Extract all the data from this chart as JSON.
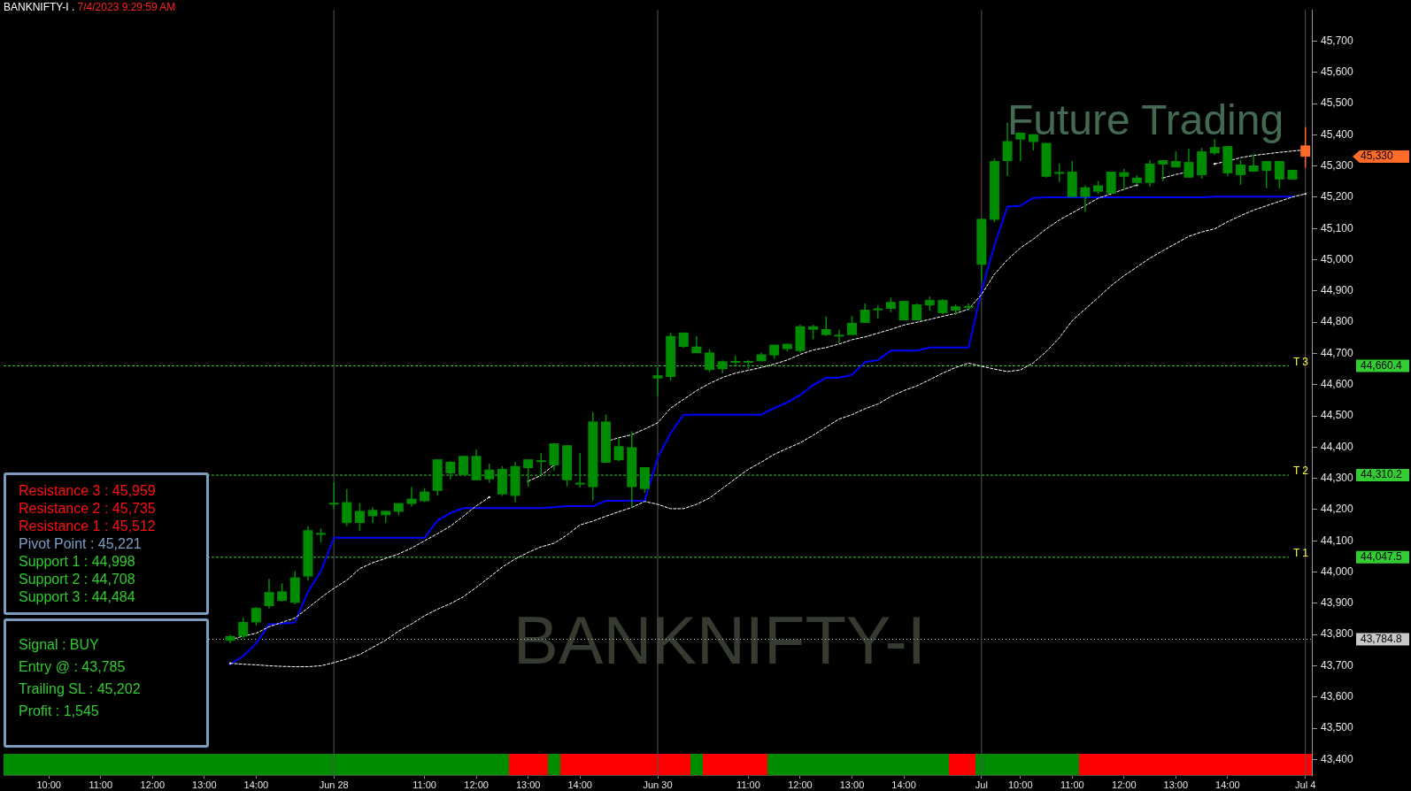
{
  "chart_data": {
    "type": "candlestick",
    "title": "BANKNIFTY-I .",
    "subtitle": "7/4/2023 9:29:59 AM",
    "categories": [
      null,
      null,
      null,
      "10:00",
      null,
      null,
      null,
      "11:00",
      null,
      null,
      null,
      "12:00",
      null,
      null,
      null,
      "13:00",
      null,
      null,
      null,
      "14:00",
      null,
      null,
      null,
      null,
      null,
      "Jun 28",
      null,
      null,
      null,
      null,
      null,
      null,
      "11:00",
      null,
      null,
      null,
      "12:00",
      null,
      null,
      null,
      "13:00",
      null,
      null,
      null,
      "14:00",
      null,
      null,
      null,
      null,
      null,
      "Jun 30",
      null,
      null,
      null,
      null,
      null,
      null,
      "11:00",
      null,
      null,
      null,
      "12:00",
      null,
      null,
      null,
      "13:00",
      null,
      null,
      null,
      "14:00",
      null,
      null,
      null,
      null,
      null,
      "Jul",
      null,
      null,
      "10:00",
      null,
      null,
      null,
      "11:00",
      null,
      null,
      null,
      "12:00",
      null,
      null,
      null,
      "13:00",
      null,
      null,
      null,
      "14:00",
      null,
      null,
      null,
      null,
      null,
      "Jul 4"
    ],
    "ohlc": [
      null,
      null,
      null,
      null,
      null,
      null,
      null,
      null,
      null,
      null,
      null,
      null,
      null,
      null,
      null,
      null,
      null,
      [
        43780,
        43800,
        43772,
        43795
      ],
      [
        43794,
        43854,
        43787,
        43840
      ],
      [
        43839,
        43888,
        43829,
        43885
      ],
      [
        43891,
        43978,
        43883,
        43936
      ],
      [
        43908,
        43964,
        43905,
        43938
      ],
      [
        43902,
        44003,
        43897,
        43983
      ],
      [
        43986,
        44146,
        43972,
        44134
      ],
      [
        44125,
        44140,
        44095,
        44125
      ],
      [
        44222,
        44288,
        44202,
        44222
      ],
      [
        44157,
        44266,
        44148,
        44224
      ],
      [
        44157,
        44221,
        44132,
        44196
      ],
      [
        44179,
        44207,
        44157,
        44199
      ],
      [
        44182,
        44196,
        44157,
        44196
      ],
      [
        44193,
        44221,
        44182,
        44221
      ],
      [
        44218,
        44272,
        44210,
        44235
      ],
      [
        44227,
        44269,
        44224,
        44258
      ],
      [
        44260,
        44361,
        44246,
        44361
      ],
      [
        44316,
        44356,
        44297,
        44353
      ],
      [
        44311,
        44372,
        44311,
        44372
      ],
      [
        44294,
        44392,
        44294,
        44372
      ],
      [
        44297,
        44347,
        44286,
        44328
      ],
      [
        44249,
        44339,
        44244,
        44330
      ],
      [
        44244,
        44353,
        44224,
        44339
      ],
      [
        44333,
        44361,
        44274,
        44361
      ],
      [
        44358,
        44381,
        44305,
        44358
      ],
      [
        44342,
        44412,
        44325,
        44412
      ],
      [
        44294,
        44406,
        44274,
        44406
      ],
      [
        44286,
        44381,
        44271,
        44286
      ],
      [
        44272,
        44512,
        44230,
        44482
      ],
      [
        44350,
        44504,
        44350,
        44482
      ],
      [
        44358,
        44428,
        44356,
        44403
      ],
      [
        44272,
        44451,
        44207,
        44400
      ],
      [
        44266,
        44336,
        44254,
        44336
      ],
      [
        44620,
        44655,
        44564,
        44630
      ],
      [
        44625,
        44767,
        44613,
        44756
      ],
      [
        44721,
        44767,
        44718,
        44767
      ],
      [
        44701,
        44756,
        44701,
        44722
      ],
      [
        44647,
        44714,
        44641,
        44703
      ],
      [
        44650,
        44678,
        44636,
        44675
      ],
      [
        44676,
        44692,
        44664,
        44676
      ],
      [
        44676,
        44678,
        44650,
        44676
      ],
      [
        44675,
        44703,
        44675,
        44697
      ],
      [
        44694,
        44728,
        44683,
        44728
      ],
      [
        44714,
        44731,
        44706,
        44731
      ],
      [
        44708,
        44792,
        44703,
        44787
      ],
      [
        44776,
        44792,
        44745,
        44787
      ],
      [
        44759,
        44818,
        44756,
        44778
      ],
      [
        44760,
        44776,
        44731,
        44760
      ],
      [
        44759,
        44820,
        44759,
        44798
      ],
      [
        44798,
        44860,
        44798,
        44840
      ],
      [
        44844,
        44854,
        44812,
        44844
      ],
      [
        44843,
        44879,
        44832,
        44865
      ],
      [
        44806,
        44868,
        44806,
        44868
      ],
      [
        44806,
        44860,
        44806,
        44857
      ],
      [
        44854,
        44882,
        44837,
        44871
      ],
      [
        44829,
        44874,
        44826,
        44871
      ],
      [
        44837,
        44857,
        44823,
        44851
      ],
      [
        44852,
        44860,
        44837,
        44852
      ],
      [
        44984,
        45131,
        44930,
        45131
      ],
      [
        45128,
        45324,
        45120,
        45316
      ],
      [
        45316,
        45439,
        45268,
        45380
      ],
      [
        45385,
        45407,
        45316,
        45407
      ],
      [
        45377,
        45402,
        45350,
        45402
      ],
      [
        45266,
        45374,
        45263,
        45374
      ],
      [
        45275,
        45308,
        45249,
        45281
      ],
      [
        45201,
        45316,
        45201,
        45282
      ],
      [
        45201,
        45238,
        45154,
        45232
      ],
      [
        45218,
        45252,
        45210,
        45238
      ],
      [
        45212,
        45282,
        45212,
        45282
      ],
      [
        45266,
        45291,
        45224,
        45280
      ],
      [
        45246,
        45271,
        45238,
        45263
      ],
      [
        45246,
        45319,
        45235,
        45308
      ],
      [
        45305,
        45319,
        45252,
        45319
      ],
      [
        45296,
        45347,
        45296,
        45316
      ],
      [
        45263,
        45355,
        45263,
        45313
      ],
      [
        45271,
        45358,
        45260,
        45347
      ],
      [
        45341,
        45386,
        45336,
        45361
      ],
      [
        45277,
        45364,
        45268,
        45364
      ],
      [
        45271,
        45319,
        45240,
        45305
      ],
      [
        45282,
        45338,
        45282,
        45302
      ],
      [
        45285,
        45316,
        45229,
        45316
      ],
      [
        45257,
        45316,
        45229,
        45316
      ],
      [
        45257,
        45288,
        45257,
        45288
      ],
      [
        45366,
        45425,
        45294,
        45330
      ]
    ],
    "colors": [
      null,
      null,
      null,
      null,
      null,
      null,
      null,
      null,
      null,
      null,
      null,
      null,
      null,
      null,
      null,
      null,
      null,
      "#008c00",
      "#008c00",
      "#008c00",
      "#008c00",
      "#008c00",
      "#008c00",
      "#008c00",
      "#008c00",
      "#008c00",
      "#008c00",
      "#008c00",
      "#008c00",
      "#008c00",
      "#008c00",
      "#008c00",
      "#008c00",
      "#008c00",
      "#008c00",
      "#008c00",
      "#008c00",
      "#008c00",
      "#008c00",
      "#008c00",
      "#008c00",
      "#008c00",
      "#008c00",
      "#008c00",
      "#008c00",
      "#008c00",
      "#008c00",
      "#008c00",
      "#008c00",
      "#008c00",
      "#008c00",
      "#008c00",
      "#008c00",
      "#008c00",
      "#008c00",
      "#008c00",
      "#008c00",
      "#008c00",
      "#008c00",
      "#008c00",
      "#008c00",
      "#008c00",
      "#008c00",
      "#008c00",
      "#008c00",
      "#008c00",
      "#008c00",
      "#008c00",
      "#008c00",
      "#008c00",
      "#008c00",
      "#008c00",
      "#008c00",
      "#008c00",
      "#008c00",
      "#008c00",
      "#008c00",
      "#008c00",
      "#008c00",
      "#008c00",
      "#008c00",
      "#008c00",
      "#008c00",
      "#008c00",
      "#008c00",
      "#008c00",
      "#008c00",
      "#008c00",
      "#008c00",
      "#008c00",
      "#008c00",
      "#008c00",
      "#008c00",
      "#008c00",
      "#008c00",
      "#008c00",
      "#008c00",
      "#008c00",
      "#008c00",
      "#008c00",
      "#ff6a28"
    ],
    "series": [
      {
        "type": "line",
        "color": "#0000ff",
        "line_style": "solid",
        "values": [
          null,
          null,
          null,
          null,
          null,
          null,
          null,
          null,
          null,
          null,
          null,
          null,
          null,
          null,
          null,
          null,
          null,
          43705,
          43731,
          43771,
          43832,
          43835,
          43839,
          43937,
          44002,
          44110,
          44110,
          44110,
          44110,
          44110,
          44110,
          44110,
          44110,
          44165,
          44189,
          44205,
          44205,
          44205,
          44205,
          44205,
          44205,
          44205,
          44208,
          44211,
          44211,
          44211,
          44228,
          44228,
          44228,
          44228,
          44366,
          44445,
          44504,
          44504,
          44504,
          44504,
          44504,
          44504,
          44504,
          44525,
          44543,
          44567,
          44599,
          44622,
          44622,
          44632,
          44672,
          44679,
          44709,
          44709,
          44709,
          44719,
          44719,
          44719,
          44719,
          44900,
          45047,
          45170,
          45173,
          45198,
          45200,
          45200,
          45200,
          45200,
          45200,
          45200,
          45200,
          45200,
          45200,
          45200,
          45200,
          45200,
          45200,
          45202,
          45202,
          45202,
          45202,
          45202,
          45202,
          45202,
          null
        ]
      },
      {
        "type": "line",
        "color": "#ffffff",
        "line_style": "dashed",
        "values": [
          null,
          null,
          null,
          null,
          null,
          null,
          null,
          null,
          null,
          null,
          null,
          null,
          null,
          null,
          null,
          null,
          null,
          43783,
          43795,
          43804,
          43825,
          43839,
          43853,
          43885,
          43918,
          43948,
          43974,
          44011,
          44030,
          44044,
          44058,
          44077,
          44100,
          44123,
          44147,
          44179,
          44212,
          44240,
          null,
          null,
          44291,
          44310,
          44343,
          null,
          null,
          null,
          44418,
          44430,
          44440,
          44458,
          44478,
          44525,
          44553,
          44581,
          44604,
          44623,
          44637,
          44646,
          44655,
          44666,
          44679,
          44697,
          44711,
          44719,
          44730,
          44744,
          44753,
          44765,
          44777,
          44791,
          44800,
          44809,
          44819,
          44828,
          44842,
          44889,
          44954,
          45000,
          45038,
          45066,
          45099,
          45127,
          45150,
          45173,
          45197,
          45211,
          45226,
          45239,
          null,
          45262,
          45273,
          45282,
          null,
          45307,
          45316,
          45327,
          45334,
          45339,
          45344,
          45348,
          45352
        ]
      },
      {
        "type": "line",
        "color": "#ffffff",
        "line_style": "dashed",
        "values": [
          null,
          null,
          null,
          null,
          null,
          null,
          null,
          null,
          null,
          null,
          null,
          null,
          null,
          null,
          null,
          null,
          null,
          43708,
          43705,
          43703,
          43700,
          43698,
          43697,
          43697,
          43700,
          43710,
          43722,
          43736,
          43759,
          43782,
          43811,
          43834,
          43860,
          43881,
          43899,
          43921,
          43951,
          43983,
          44016,
          44042,
          44063,
          44081,
          44092,
          44119,
          44151,
          44163,
          44179,
          44193,
          44207,
          44226,
          44217,
          44203,
          44203,
          44217,
          44237,
          44268,
          44299,
          44329,
          44352,
          44377,
          44396,
          44414,
          44438,
          44464,
          44490,
          44504,
          44523,
          44538,
          44562,
          44581,
          44596,
          44616,
          44637,
          44655,
          44669,
          44659,
          44650,
          44642,
          44647,
          44670,
          44706,
          44750,
          44805,
          44842,
          44879,
          44917,
          44949,
          44977,
          45005,
          45029,
          45052,
          45075,
          45089,
          45099,
          45122,
          45141,
          45159,
          45173,
          45187,
          45201,
          45211
        ]
      }
    ],
    "ylim": [
      43350,
      45800
    ],
    "yticks": [
      {
        "value": 43400,
        "label": "43,400"
      },
      {
        "value": 43500,
        "label": "43,500"
      },
      {
        "value": 43600,
        "label": "43,600"
      },
      {
        "value": 43700,
        "label": "43,700"
      },
      {
        "value": 43800,
        "label": "43,800"
      },
      {
        "value": 43900,
        "label": "43,900"
      },
      {
        "value": 44000,
        "label": "44,000"
      },
      {
        "value": 44100,
        "label": "44,100"
      },
      {
        "value": 44200,
        "label": "44,200"
      },
      {
        "value": 44300,
        "label": "44,300"
      },
      {
        "value": 44400,
        "label": "44,400"
      },
      {
        "value": 44500,
        "label": "44,500"
      },
      {
        "value": 44600,
        "label": "44,600"
      },
      {
        "value": 44700,
        "label": "44,700"
      },
      {
        "value": 44800,
        "label": "44,800"
      },
      {
        "value": 44900,
        "label": "44,900"
      },
      {
        "value": 45000,
        "label": "45,000"
      },
      {
        "value": 45100,
        "label": "45,100"
      },
      {
        "value": 45200,
        "label": "45,200"
      },
      {
        "value": 45300,
        "label": "45,300"
      },
      {
        "value": 45400,
        "label": "45,400"
      },
      {
        "value": 45500,
        "label": "45,500"
      },
      {
        "value": 45600,
        "label": "45,600"
      },
      {
        "value": 45700,
        "label": "45,700"
      }
    ],
    "ref_lines": [
      {
        "axis": "y",
        "value": 44660.4,
        "label": "T 3",
        "color": "#33cc33",
        "line_style": "dashed"
      },
      {
        "axis": "y",
        "value": 44310.2,
        "label": "T 2",
        "color": "#33cc33",
        "line_style": "dashed"
      },
      {
        "axis": "y",
        "value": 44047.5,
        "label": "T 1",
        "color": "#33cc33",
        "line_style": "dashed"
      },
      {
        "axis": "y",
        "value": 43784.8,
        "color": "#c8c8c8",
        "line_style": "dotted"
      },
      {
        "axis": "x",
        "value": "Jun 28",
        "color": "#555555",
        "line_style": "solid"
      },
      {
        "axis": "x",
        "value": "Jun 30",
        "color": "#555555",
        "line_style": "solid"
      },
      {
        "axis": "x",
        "value": "Jul",
        "color": "#555555",
        "line_style": "solid"
      },
      {
        "axis": "x",
        "value": "Jul 4",
        "color": "#555555",
        "line_style": "solid"
      }
    ],
    "annotations": [
      "Resistance 3 : 45,959",
      "Resistance 2 : 45,735",
      "Resistance 1 : 45,512",
      "Pivot Point : 45,221",
      "Support 1 : 44,998",
      "Support 2 : 44,708",
      "Support 3 : 44,484",
      "Signal : BUY",
      "Entry @ : 43,785",
      "Trailing SL : 45,202",
      "Profit : 1,545",
      "BANKNIFTY-I",
      "Future Trading",
      "45,330",
      "44,660.4",
      "44,310.2",
      "44,047.5",
      "43,784.8"
    ],
    "grid": false,
    "legend": false
  }
}
